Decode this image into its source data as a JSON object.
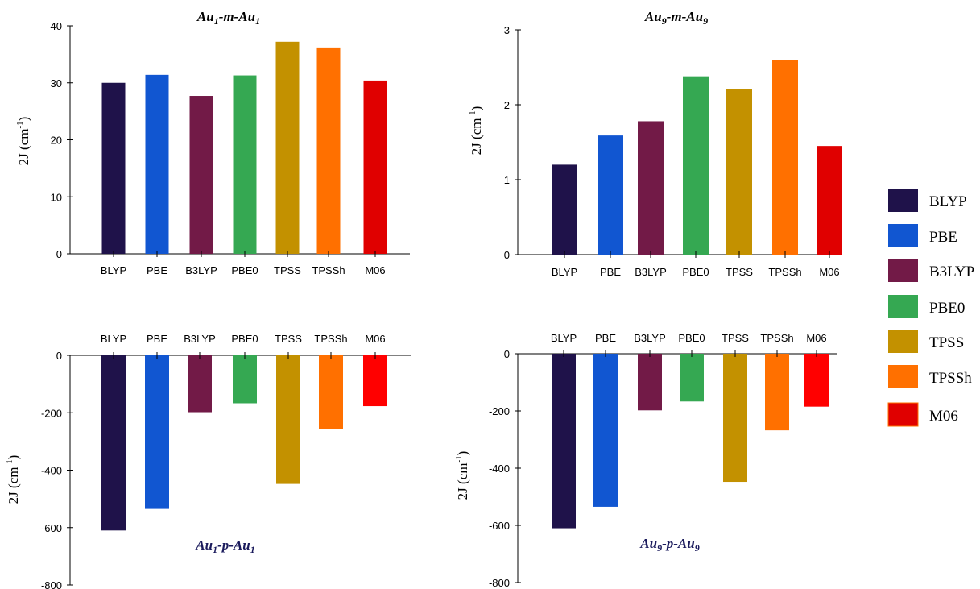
{
  "series_colors": {
    "BLYP": "#1f124a",
    "PBE": "#1156d1",
    "B3LYP": "#721a47",
    "PBE0": "#35a852",
    "TPSS": "#c39100",
    "TPSSh": "#ff7000",
    "M06": "#e00000",
    "M06_bottom": "#ff0000"
  },
  "legend": {
    "items": [
      "BLYP",
      "PBE",
      "B3LYP",
      "PBE0",
      "TPSS",
      "TPSSh",
      "M06"
    ]
  },
  "chart_data": [
    {
      "type": "bar",
      "title": {
        "base1": "Au",
        "sub1": "1",
        "mid": "-m-",
        "base2": "Au",
        "sub2": "1"
      },
      "ylabel": {
        "text": "2J (cm",
        "sup": "-1",
        "close": ")"
      },
      "categories": [
        "BLYP",
        "PBE",
        "B3LYP",
        "PBE0",
        "TPSS",
        "TPSSh",
        "M06"
      ],
      "values": [
        30.0,
        31.4,
        27.7,
        31.3,
        37.2,
        36.2,
        30.4
      ],
      "ylim": [
        0,
        40
      ],
      "yticks": [
        "0",
        "10",
        "20",
        "30",
        "40"
      ]
    },
    {
      "type": "bar",
      "title": {
        "base1": "Au",
        "sub1": "9",
        "mid": "-m-",
        "base2": "Au",
        "sub2": "9"
      },
      "ylabel": {
        "text": "2J (cm",
        "sup": "-1",
        "close": ")"
      },
      "categories": [
        "BLYP",
        "PBE",
        "B3LYP",
        "PBE0",
        "TPSS",
        "TPSSh",
        "M06"
      ],
      "values": [
        1.2,
        1.59,
        1.78,
        2.38,
        2.21,
        2.6,
        1.45
      ],
      "ylim": [
        0,
        3
      ],
      "yticks": [
        "0",
        "1",
        "2",
        "3"
      ]
    },
    {
      "type": "bar",
      "title": {
        "base1": "Au",
        "sub1": "1",
        "mid": "-p-",
        "base2": "Au",
        "sub2": "1"
      },
      "ylabel": {
        "text": "2J (cm",
        "sup": "-1",
        "close": ")"
      },
      "categories": [
        "BLYP",
        "PBE",
        "B3LYP",
        "PBE0",
        "TPSS",
        "TPSSh",
        "M06"
      ],
      "values": [
        -610,
        -535,
        -198,
        -167,
        -448,
        -258,
        -177
      ],
      "ylim": [
        -800,
        0
      ],
      "yticks": [
        "0",
        "-200",
        "-400",
        "-600",
        "-800"
      ]
    },
    {
      "type": "bar",
      "title": {
        "base1": "Au",
        "sub1": "9",
        "mid": "-p-",
        "base2": "Au",
        "sub2": "9"
      },
      "ylabel": {
        "text": "2J (cm",
        "sup": "-1",
        "close": ")"
      },
      "categories": [
        "BLYP",
        "PBE",
        "B3LYP",
        "PBE0",
        "TPSS",
        "TPSSh",
        "M06"
      ],
      "values": [
        -610,
        -535,
        -198,
        -167,
        -448,
        -268,
        -185
      ],
      "ylim": [
        -800,
        0
      ],
      "yticks": [
        "0",
        "-200",
        "-400",
        "-600",
        "-800"
      ]
    }
  ]
}
